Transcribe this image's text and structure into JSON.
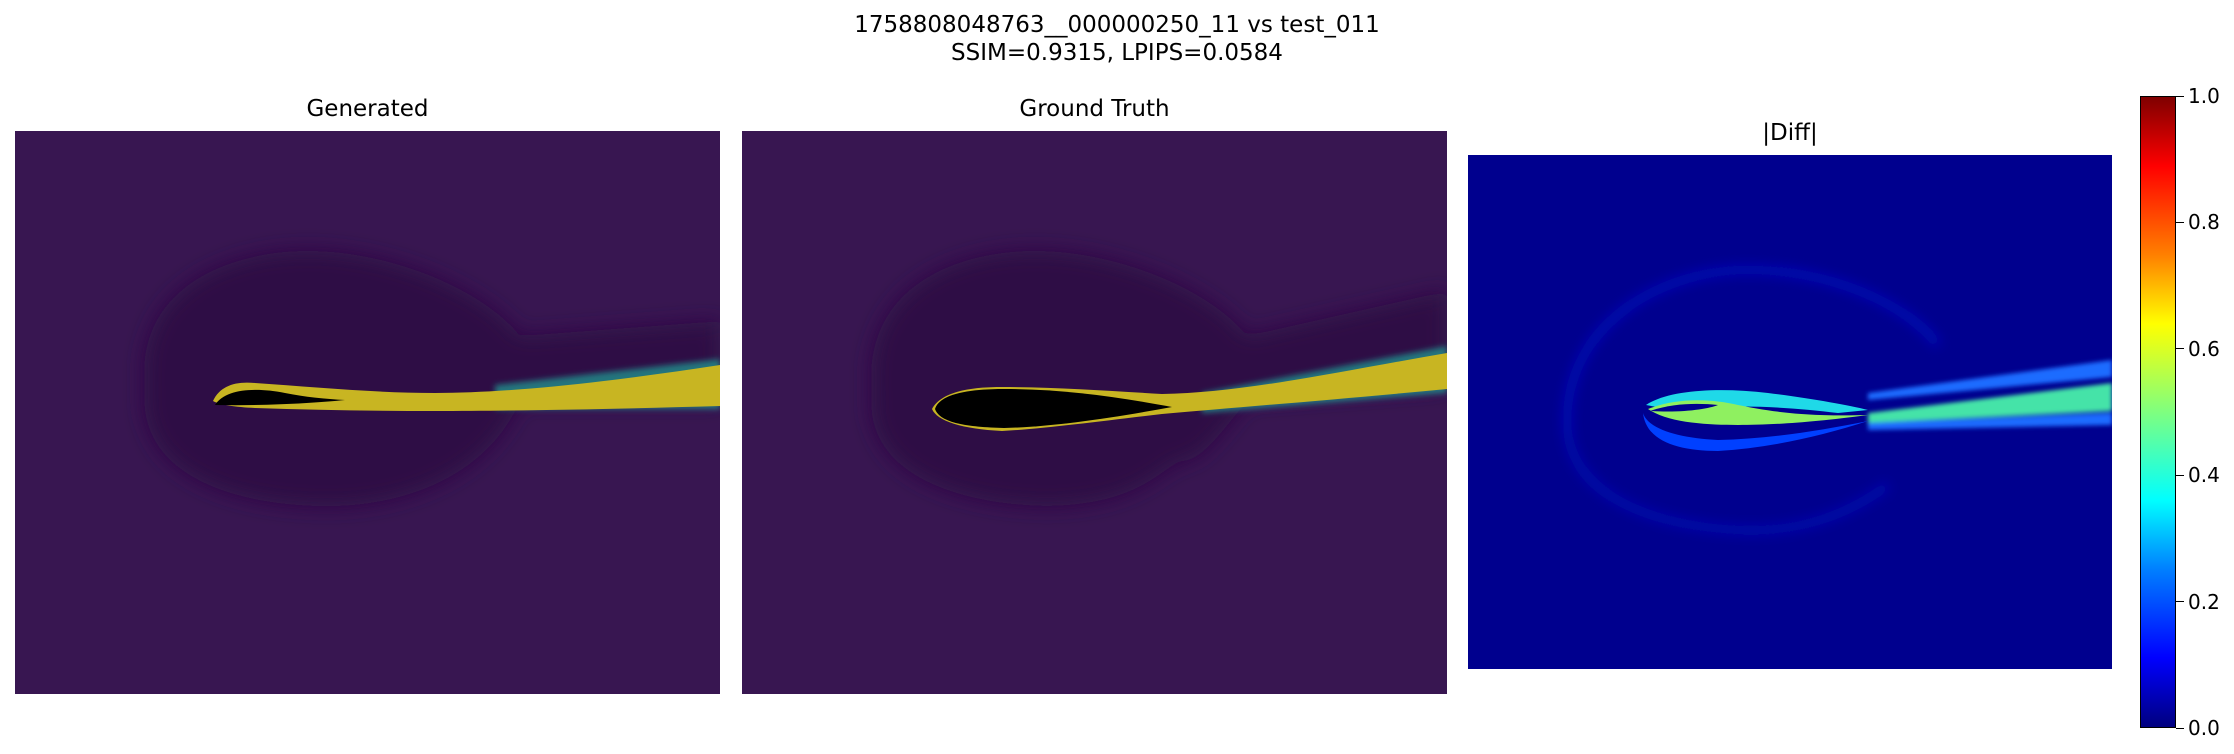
{
  "figure": {
    "title_line1": "1758808048763__000000250_11 vs test_011",
    "title_line2": "SSIM=0.9315, LPIPS=0.0584"
  },
  "panels": [
    {
      "title": "Generated",
      "colormap": "viridis"
    },
    {
      "title": "Ground Truth",
      "colormap": "viridis"
    },
    {
      "title": "|Diff|",
      "colormap": "jet"
    }
  ],
  "chart_data": {
    "type": "heatmap",
    "colorbar": {
      "colormap": "jet",
      "range": [
        0.0,
        1.0
      ],
      "ticks": [
        {
          "value": 0.0,
          "label": "0.0"
        },
        {
          "value": 0.2,
          "label": "0.2"
        },
        {
          "value": 0.4,
          "label": "0.4"
        },
        {
          "value": 0.6,
          "label": "0.6"
        },
        {
          "value": 0.8,
          "label": "0.8"
        },
        {
          "value": 1.0,
          "label": "1.0"
        }
      ]
    },
    "metrics": {
      "SSIM": 0.9315,
      "LPIPS": 0.0584
    }
  },
  "colors": {
    "background_purple": "#381651",
    "wake_region": "#2f0a45",
    "wake_yellow": "#c8b522",
    "airfoil_black": "#000000",
    "diff_background": "#00008e"
  }
}
